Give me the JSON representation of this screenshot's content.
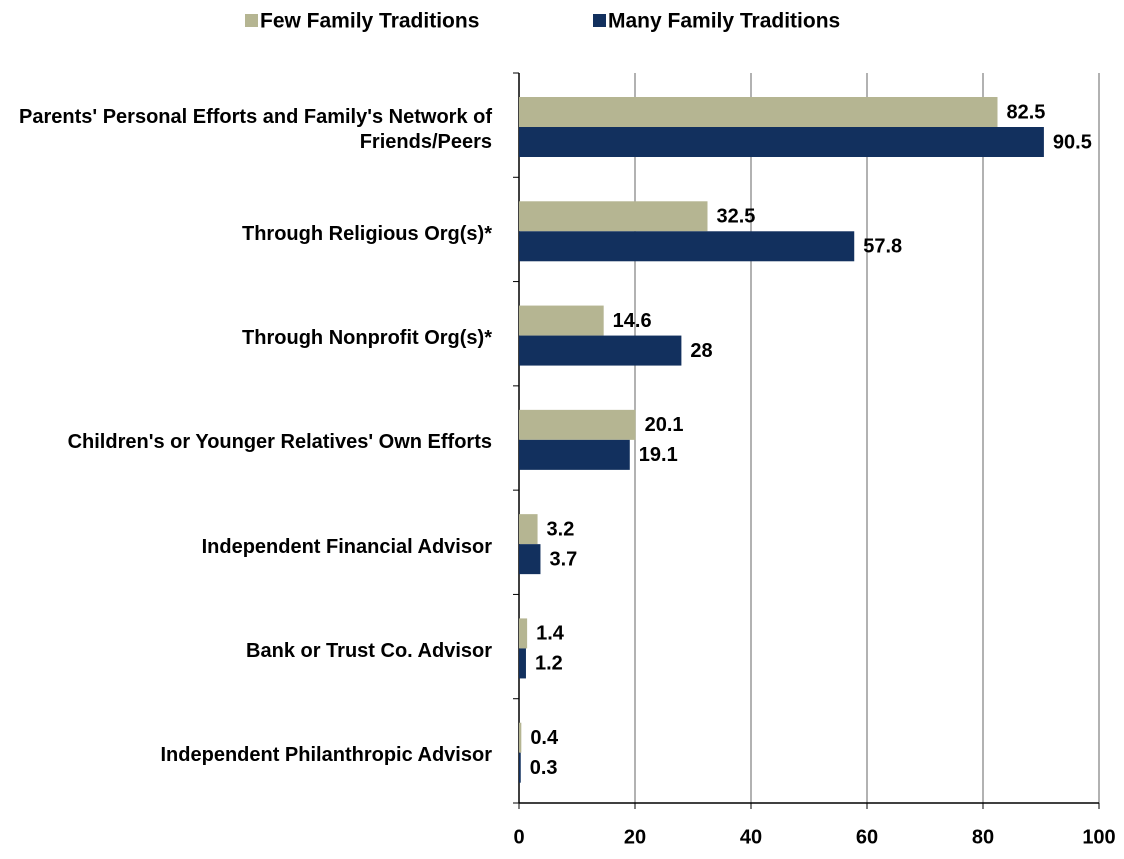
{
  "chart_data": {
    "type": "hbar",
    "categories": [
      "Parents' Personal Efforts and Family's Network of Friends/Peers",
      "Through Religious Org(s)*",
      "Through Nonprofit Org(s)*",
      "Children's or Younger Relatives' Own Efforts",
      "Independent Financial Advisor",
      "Bank or Trust Co. Advisor",
      "Independent Philanthropic Advisor"
    ],
    "series": [
      {
        "name": "Few Family Traditions",
        "color": "#b5b592",
        "values": [
          82.5,
          32.5,
          14.6,
          20.1,
          3.2,
          1.4,
          0.4
        ]
      },
      {
        "name": "Many Family Traditions",
        "color": "#12305e",
        "values": [
          90.5,
          57.8,
          28,
          19.1,
          3.7,
          1.2,
          0.3
        ]
      }
    ],
    "xlim": [
      0,
      100
    ],
    "xticks": [
      0,
      20,
      40,
      60,
      80,
      100
    ],
    "grid": true,
    "legend": "top"
  }
}
